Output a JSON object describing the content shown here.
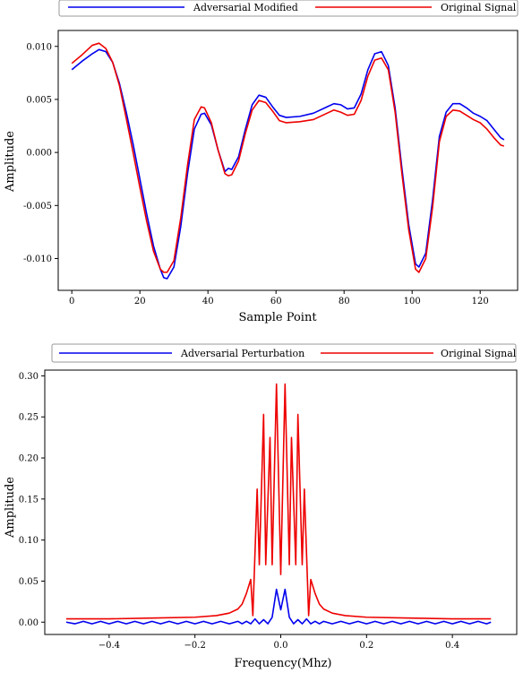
{
  "chart_data": [
    {
      "type": "line",
      "xlabel": "Sample Point",
      "ylabel": "Amplitude",
      "xlim": [
        -4,
        131
      ],
      "ylim": [
        -0.013,
        0.0115
      ],
      "xticks": [
        0,
        20,
        40,
        60,
        80,
        100,
        120
      ],
      "yticks": [
        -0.01,
        -0.005,
        0.0,
        0.005,
        0.01
      ],
      "ytick_labels": [
        "-0.010",
        "-0.005",
        "0.000",
        "0.005",
        "0.010"
      ],
      "legend_position": "top-center, outside",
      "grid": false,
      "series": [
        {
          "name": "Adversarial Modified",
          "color": "#0000ee",
          "points": [
            [
              0,
              0.0078
            ],
            [
              3,
              0.0086
            ],
            [
              6,
              0.0093
            ],
            [
              8,
              0.0097
            ],
            [
              10,
              0.0095
            ],
            [
              12,
              0.0085
            ],
            [
              14,
              0.0065
            ],
            [
              16,
              0.0038
            ],
            [
              18,
              0.0008
            ],
            [
              20,
              -0.0025
            ],
            [
              22,
              -0.0058
            ],
            [
              24,
              -0.0088
            ],
            [
              26,
              -0.011
            ],
            [
              27,
              -0.0118
            ],
            [
              28,
              -0.0119
            ],
            [
              30,
              -0.0108
            ],
            [
              32,
              -0.007
            ],
            [
              34,
              -0.002
            ],
            [
              36,
              0.0022
            ],
            [
              38,
              0.0036
            ],
            [
              39,
              0.0037
            ],
            [
              41,
              0.0026
            ],
            [
              43,
              0.0002
            ],
            [
              45,
              -0.0018
            ],
            [
              46,
              -0.0015
            ],
            [
              47,
              -0.0016
            ],
            [
              49,
              -0.0004
            ],
            [
              51,
              0.0022
            ],
            [
              53,
              0.0045
            ],
            [
              55,
              0.0054
            ],
            [
              57,
              0.0052
            ],
            [
              59,
              0.0043
            ],
            [
              61,
              0.0035
            ],
            [
              63,
              0.0033
            ],
            [
              67,
              0.0034
            ],
            [
              71,
              0.0037
            ],
            [
              75,
              0.0043
            ],
            [
              77,
              0.0046
            ],
            [
              79,
              0.0045
            ],
            [
              81,
              0.0041
            ],
            [
              83,
              0.0042
            ],
            [
              85,
              0.0055
            ],
            [
              87,
              0.0078
            ],
            [
              89,
              0.0093
            ],
            [
              91,
              0.0095
            ],
            [
              93,
              0.0082
            ],
            [
              95,
              0.0042
            ],
            [
              97,
              -0.0015
            ],
            [
              99,
              -0.0068
            ],
            [
              101,
              -0.0105
            ],
            [
              102,
              -0.0108
            ],
            [
              104,
              -0.0095
            ],
            [
              106,
              -0.0045
            ],
            [
              108,
              0.0015
            ],
            [
              110,
              0.0038
            ],
            [
              112,
              0.0046
            ],
            [
              114,
              0.0046
            ],
            [
              116,
              0.0042
            ],
            [
              118,
              0.0037
            ],
            [
              120,
              0.0034
            ],
            [
              122,
              0.003
            ],
            [
              124,
              0.0022
            ],
            [
              126,
              0.0014
            ],
            [
              127,
              0.0012
            ]
          ]
        },
        {
          "name": "Original Signal",
          "color": "#ee0000",
          "points": [
            [
              0,
              0.0084
            ],
            [
              3,
              0.0092
            ],
            [
              6,
              0.0101
            ],
            [
              8,
              0.0103
            ],
            [
              10,
              0.0098
            ],
            [
              12,
              0.0085
            ],
            [
              14,
              0.0063
            ],
            [
              16,
              0.0032
            ],
            [
              18,
              0.0
            ],
            [
              20,
              -0.0033
            ],
            [
              22,
              -0.0065
            ],
            [
              24,
              -0.0093
            ],
            [
              26,
              -0.011
            ],
            [
              27,
              -0.0113
            ],
            [
              28,
              -0.0113
            ],
            [
              30,
              -0.0102
            ],
            [
              32,
              -0.0062
            ],
            [
              34,
              -0.0012
            ],
            [
              36,
              0.0031
            ],
            [
              38,
              0.0043
            ],
            [
              39,
              0.0042
            ],
            [
              41,
              0.0028
            ],
            [
              43,
              0.0002
            ],
            [
              45,
              -0.002
            ],
            [
              46,
              -0.0022
            ],
            [
              47,
              -0.0021
            ],
            [
              49,
              -0.0008
            ],
            [
              51,
              0.0018
            ],
            [
              53,
              0.004
            ],
            [
              55,
              0.0049
            ],
            [
              57,
              0.0047
            ],
            [
              59,
              0.0039
            ],
            [
              61,
              0.003
            ],
            [
              63,
              0.0028
            ],
            [
              67,
              0.0029
            ],
            [
              71,
              0.0031
            ],
            [
              75,
              0.0037
            ],
            [
              77,
              0.004
            ],
            [
              79,
              0.0038
            ],
            [
              81,
              0.0035
            ],
            [
              83,
              0.0036
            ],
            [
              85,
              0.0049
            ],
            [
              87,
              0.0072
            ],
            [
              89,
              0.0087
            ],
            [
              91,
              0.0089
            ],
            [
              93,
              0.0078
            ],
            [
              95,
              0.0038
            ],
            [
              97,
              -0.002
            ],
            [
              99,
              -0.0073
            ],
            [
              101,
              -0.011
            ],
            [
              102,
              -0.0113
            ],
            [
              104,
              -0.01
            ],
            [
              106,
              -0.0052
            ],
            [
              108,
              0.001
            ],
            [
              110,
              0.0034
            ],
            [
              112,
              0.004
            ],
            [
              114,
              0.0039
            ],
            [
              116,
              0.0035
            ],
            [
              118,
              0.0031
            ],
            [
              120,
              0.0028
            ],
            [
              122,
              0.0022
            ],
            [
              124,
              0.0014
            ],
            [
              126,
              0.0007
            ],
            [
              127,
              0.0006
            ]
          ]
        }
      ]
    },
    {
      "type": "line",
      "xlabel": "Frequency(Mhz)",
      "ylabel": "Amplitude",
      "xlim": [
        -0.55,
        0.55
      ],
      "ylim": [
        -0.015,
        0.307
      ],
      "xticks": [
        -0.4,
        -0.2,
        0.0,
        0.2,
        0.4
      ],
      "xtick_labels": [
        "−0.4",
        "−0.2",
        "0.0",
        "0.2",
        "0.4"
      ],
      "yticks": [
        0.0,
        0.05,
        0.1,
        0.15,
        0.2,
        0.25,
        0.3
      ],
      "ytick_labels": [
        "0.00",
        "0.05",
        "0.10",
        "0.15",
        "0.20",
        "0.25",
        "0.30"
      ],
      "legend_position": "top-center, outside",
      "grid": false,
      "series": [
        {
          "name": "Adversarial Perturbation",
          "color": "#0000ee",
          "points": [
            [
              -0.5,
              0.0
            ],
            [
              -0.48,
              -0.002
            ],
            [
              -0.46,
              0.001
            ],
            [
              -0.44,
              -0.002
            ],
            [
              -0.42,
              0.001
            ],
            [
              -0.4,
              -0.002
            ],
            [
              -0.38,
              0.001
            ],
            [
              -0.36,
              -0.002
            ],
            [
              -0.34,
              0.001
            ],
            [
              -0.32,
              -0.002
            ],
            [
              -0.3,
              0.001
            ],
            [
              -0.28,
              -0.002
            ],
            [
              -0.26,
              0.001
            ],
            [
              -0.24,
              -0.002
            ],
            [
              -0.22,
              0.001
            ],
            [
              -0.2,
              -0.002
            ],
            [
              -0.18,
              0.001
            ],
            [
              -0.16,
              -0.002
            ],
            [
              -0.14,
              0.001
            ],
            [
              -0.12,
              -0.002
            ],
            [
              -0.1,
              0.001
            ],
            [
              -0.09,
              -0.002
            ],
            [
              -0.08,
              0.001
            ],
            [
              -0.07,
              -0.002
            ],
            [
              -0.06,
              0.004
            ],
            [
              -0.05,
              -0.002
            ],
            [
              -0.04,
              0.003
            ],
            [
              -0.03,
              -0.002
            ],
            [
              -0.02,
              0.006
            ],
            [
              -0.01,
              0.04
            ],
            [
              0.0,
              0.015
            ],
            [
              0.01,
              0.04
            ],
            [
              0.02,
              0.006
            ],
            [
              0.03,
              -0.002
            ],
            [
              0.04,
              0.003
            ],
            [
              0.05,
              -0.002
            ],
            [
              0.06,
              0.004
            ],
            [
              0.07,
              -0.002
            ],
            [
              0.08,
              0.001
            ],
            [
              0.09,
              -0.002
            ],
            [
              0.1,
              0.001
            ],
            [
              0.12,
              -0.002
            ],
            [
              0.14,
              0.001
            ],
            [
              0.16,
              -0.002
            ],
            [
              0.18,
              0.001
            ],
            [
              0.2,
              -0.002
            ],
            [
              0.22,
              0.001
            ],
            [
              0.24,
              -0.002
            ],
            [
              0.26,
              0.001
            ],
            [
              0.28,
              -0.002
            ],
            [
              0.3,
              0.001
            ],
            [
              0.32,
              -0.002
            ],
            [
              0.34,
              0.001
            ],
            [
              0.36,
              -0.002
            ],
            [
              0.38,
              0.001
            ],
            [
              0.4,
              -0.002
            ],
            [
              0.42,
              0.001
            ],
            [
              0.44,
              -0.002
            ],
            [
              0.46,
              0.001
            ],
            [
              0.48,
              -0.002
            ],
            [
              0.49,
              0.0
            ]
          ]
        },
        {
          "name": "Original Signal",
          "color": "#ee0000",
          "points": [
            [
              -0.5,
              0.004
            ],
            [
              -0.4,
              0.004
            ],
            [
              -0.3,
              0.005
            ],
            [
              -0.2,
              0.006
            ],
            [
              -0.15,
              0.008
            ],
            [
              -0.12,
              0.011
            ],
            [
              -0.1,
              0.016
            ],
            [
              -0.09,
              0.022
            ],
            [
              -0.08,
              0.035
            ],
            [
              -0.07,
              0.052
            ],
            [
              -0.065,
              0.008
            ],
            [
              -0.055,
              0.162
            ],
            [
              -0.05,
              0.07
            ],
            [
              -0.04,
              0.253
            ],
            [
              -0.035,
              0.07
            ],
            [
              -0.025,
              0.225
            ],
            [
              -0.02,
              0.07
            ],
            [
              -0.01,
              0.29
            ],
            [
              0.0,
              0.058
            ],
            [
              0.01,
              0.29
            ],
            [
              0.02,
              0.07
            ],
            [
              0.025,
              0.225
            ],
            [
              0.035,
              0.07
            ],
            [
              0.04,
              0.253
            ],
            [
              0.05,
              0.07
            ],
            [
              0.055,
              0.162
            ],
            [
              0.065,
              0.008
            ],
            [
              0.07,
              0.052
            ],
            [
              0.08,
              0.035
            ],
            [
              0.09,
              0.022
            ],
            [
              0.1,
              0.016
            ],
            [
              0.12,
              0.011
            ],
            [
              0.15,
              0.008
            ],
            [
              0.2,
              0.006
            ],
            [
              0.3,
              0.005
            ],
            [
              0.4,
              0.004
            ],
            [
              0.49,
              0.004
            ]
          ]
        }
      ]
    }
  ]
}
